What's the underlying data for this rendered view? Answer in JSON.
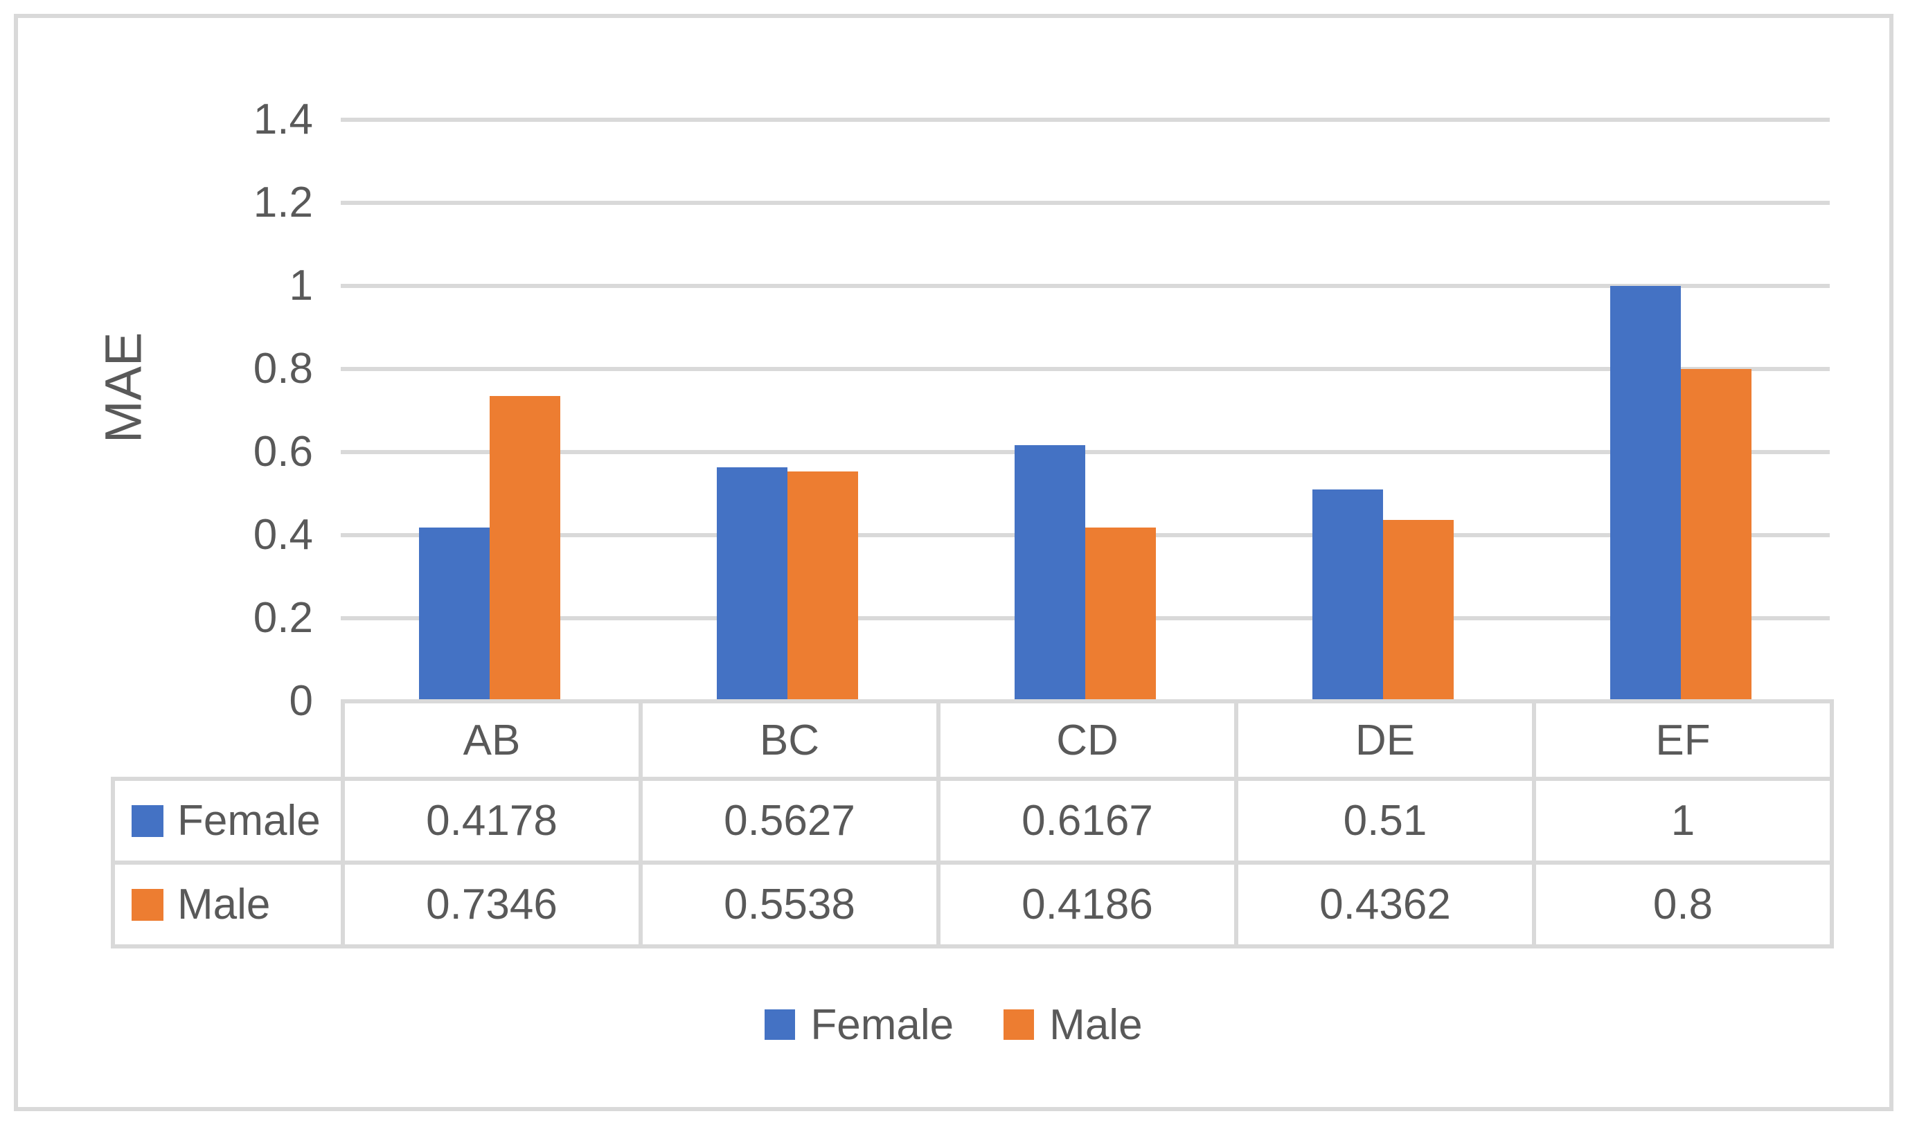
{
  "chart_data": {
    "type": "bar",
    "title": "",
    "categories": [
      "AB",
      "BC",
      "CD",
      "DE",
      "EF"
    ],
    "series": [
      {
        "name": "Female",
        "color": "#4472C4",
        "values": [
          0.4178,
          0.5627,
          0.6167,
          0.51,
          1
        ]
      },
      {
        "name": "Male",
        "color": "#ED7D31",
        "values": [
          0.7346,
          0.5538,
          0.4186,
          0.4362,
          0.8
        ]
      }
    ],
    "xlabel": "",
    "ylabel": "MAE",
    "ylim": [
      0,
      1.4
    ],
    "yticks": [
      0,
      0.2,
      0.4,
      0.6,
      0.8,
      1,
      1.2,
      1.4
    ],
    "ytick_labels": [
      "0",
      "0.2",
      "0.4",
      "0.6",
      "0.8",
      "1",
      "1.2",
      "1.4"
    ],
    "grid": true,
    "gridline_color": "#D9D9D9",
    "legend_position": "bottom",
    "legend_items": [
      "Female",
      "Male"
    ],
    "data_table": {
      "shown": true,
      "columns": [
        "AB",
        "BC",
        "CD",
        "DE",
        "EF"
      ],
      "rows": [
        {
          "label": "Female",
          "values": [
            "0.4178",
            "0.5627",
            "0.6167",
            "0.51",
            "1"
          ]
        },
        {
          "label": "Male",
          "values": [
            "0.7346",
            "0.5538",
            "0.4186",
            "0.4362",
            "0.8"
          ]
        }
      ]
    }
  },
  "colors": {
    "text": "#595959",
    "gridline": "#D9D9D9",
    "table_border": "#D9D9D9",
    "card_border": "#D9D9D9",
    "background": "#FFFFFF"
  }
}
